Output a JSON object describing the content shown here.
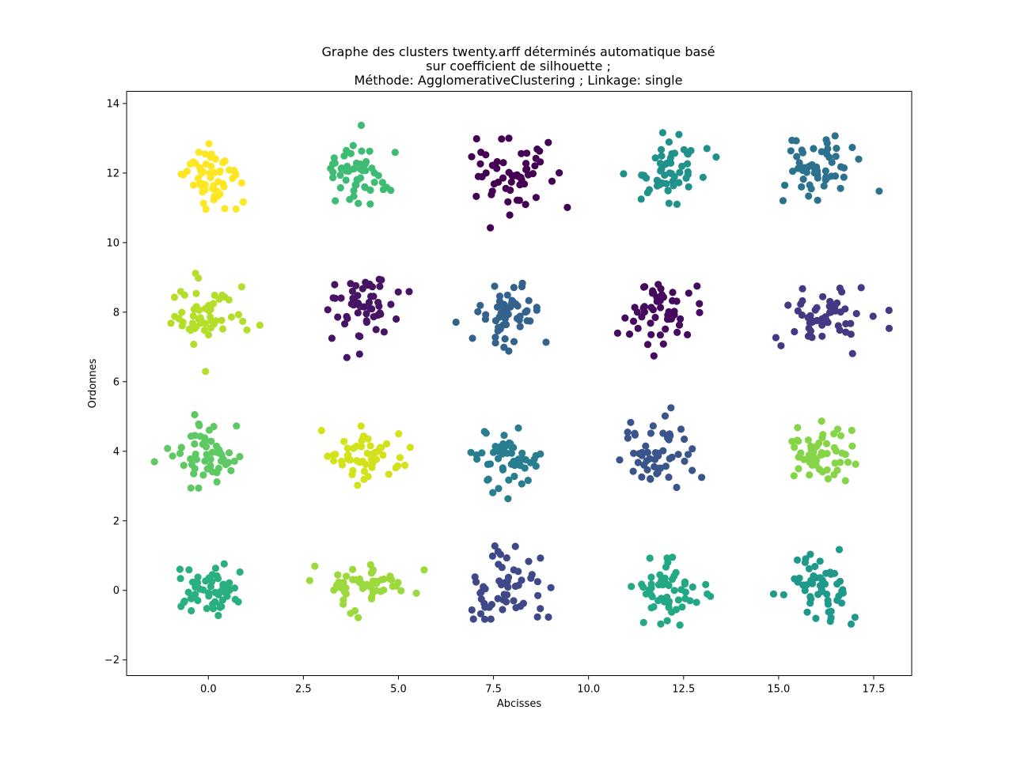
{
  "chart_data": {
    "type": "scatter",
    "title_lines": [
      "Graphe des clusters twenty.arff déterminés automatique basé",
      "sur coefficient de silhouette ;",
      "Méthode: AgglomerativeClustering ; Linkage: single"
    ],
    "xlabel": "Abcisses",
    "ylabel": "Ordonnes",
    "xlim": [
      -2.15,
      18.5
    ],
    "ylim": [
      -2.45,
      14.35
    ],
    "xticks": [
      0.0,
      2.5,
      5.0,
      7.5,
      10.0,
      12.5,
      15.0,
      17.5
    ],
    "xtick_labels": [
      "0.0",
      "2.5",
      "5.0",
      "7.5",
      "10.0",
      "12.5",
      "15.0",
      "17.5"
    ],
    "yticks": [
      -2,
      0,
      2,
      4,
      6,
      8,
      10,
      12,
      14
    ],
    "ytick_labels": [
      "−2",
      "0",
      "2",
      "4",
      "6",
      "8",
      "10",
      "12",
      "14"
    ],
    "grid": false,
    "legend": "none",
    "colormap": "viridis",
    "clusters": [
      {
        "center": [
          7.9,
          11.9
        ],
        "spread": [
          0.55,
          0.65
        ],
        "color": "#440154",
        "n": 55
      },
      {
        "center": [
          12.0,
          8.0
        ],
        "spread": [
          0.55,
          0.5
        ],
        "color": "#450a5d",
        "n": 55
      },
      {
        "center": [
          4.0,
          8.1
        ],
        "spread": [
          0.55,
          0.55
        ],
        "color": "#471365",
        "n": 55
      },
      {
        "center": [
          16.1,
          7.9
        ],
        "spread": [
          0.65,
          0.55
        ],
        "color": "#443983",
        "n": 55
      },
      {
        "center": [
          7.8,
          0.0
        ],
        "spread": [
          0.55,
          0.6
        ],
        "color": "#3f4889",
        "n": 55
      },
      {
        "center": [
          11.9,
          4.0
        ],
        "spread": [
          0.55,
          0.55
        ],
        "color": "#3a548c",
        "n": 55
      },
      {
        "center": [
          8.0,
          8.0
        ],
        "spread": [
          0.55,
          0.55
        ],
        "color": "#33638d",
        "n": 55
      },
      {
        "center": [
          16.1,
          12.1
        ],
        "spread": [
          0.55,
          0.5
        ],
        "color": "#2c728e",
        "n": 55
      },
      {
        "center": [
          7.9,
          3.8
        ],
        "spread": [
          0.45,
          0.5
        ],
        "color": "#287d8e",
        "n": 55
      },
      {
        "center": [
          12.1,
          12.0
        ],
        "spread": [
          0.55,
          0.55
        ],
        "color": "#21918c",
        "n": 55
      },
      {
        "center": [
          16.0,
          0.0
        ],
        "spread": [
          0.55,
          0.55
        ],
        "color": "#1f9a8a",
        "n": 55
      },
      {
        "center": [
          12.1,
          0.0
        ],
        "spread": [
          0.5,
          0.5
        ],
        "color": "#22a884",
        "n": 55
      },
      {
        "center": [
          0.1,
          0.0
        ],
        "spread": [
          0.5,
          0.4
        ],
        "color": "#2ab07f",
        "n": 55
      },
      {
        "center": [
          4.0,
          12.0
        ],
        "spread": [
          0.5,
          0.5
        ],
        "color": "#3ebc74",
        "n": 55
      },
      {
        "center": [
          0.0,
          3.9
        ],
        "spread": [
          0.55,
          0.5
        ],
        "color": "#5ec962",
        "n": 55
      },
      {
        "center": [
          16.1,
          3.9
        ],
        "spread": [
          0.55,
          0.45
        ],
        "color": "#86d549",
        "n": 55
      },
      {
        "center": [
          4.2,
          0.1
        ],
        "spread": [
          0.6,
          0.4
        ],
        "color": "#9bd93c",
        "n": 55
      },
      {
        "center": [
          0.0,
          7.9
        ],
        "spread": [
          0.55,
          0.55
        ],
        "color": "#b5de2b",
        "n": 55
      },
      {
        "center": [
          4.1,
          3.9
        ],
        "spread": [
          0.55,
          0.45
        ],
        "color": "#d2e21b",
        "n": 55
      },
      {
        "center": [
          0.0,
          11.9
        ],
        "spread": [
          0.45,
          0.5
        ],
        "color": "#fde725",
        "n": 55
      }
    ]
  }
}
